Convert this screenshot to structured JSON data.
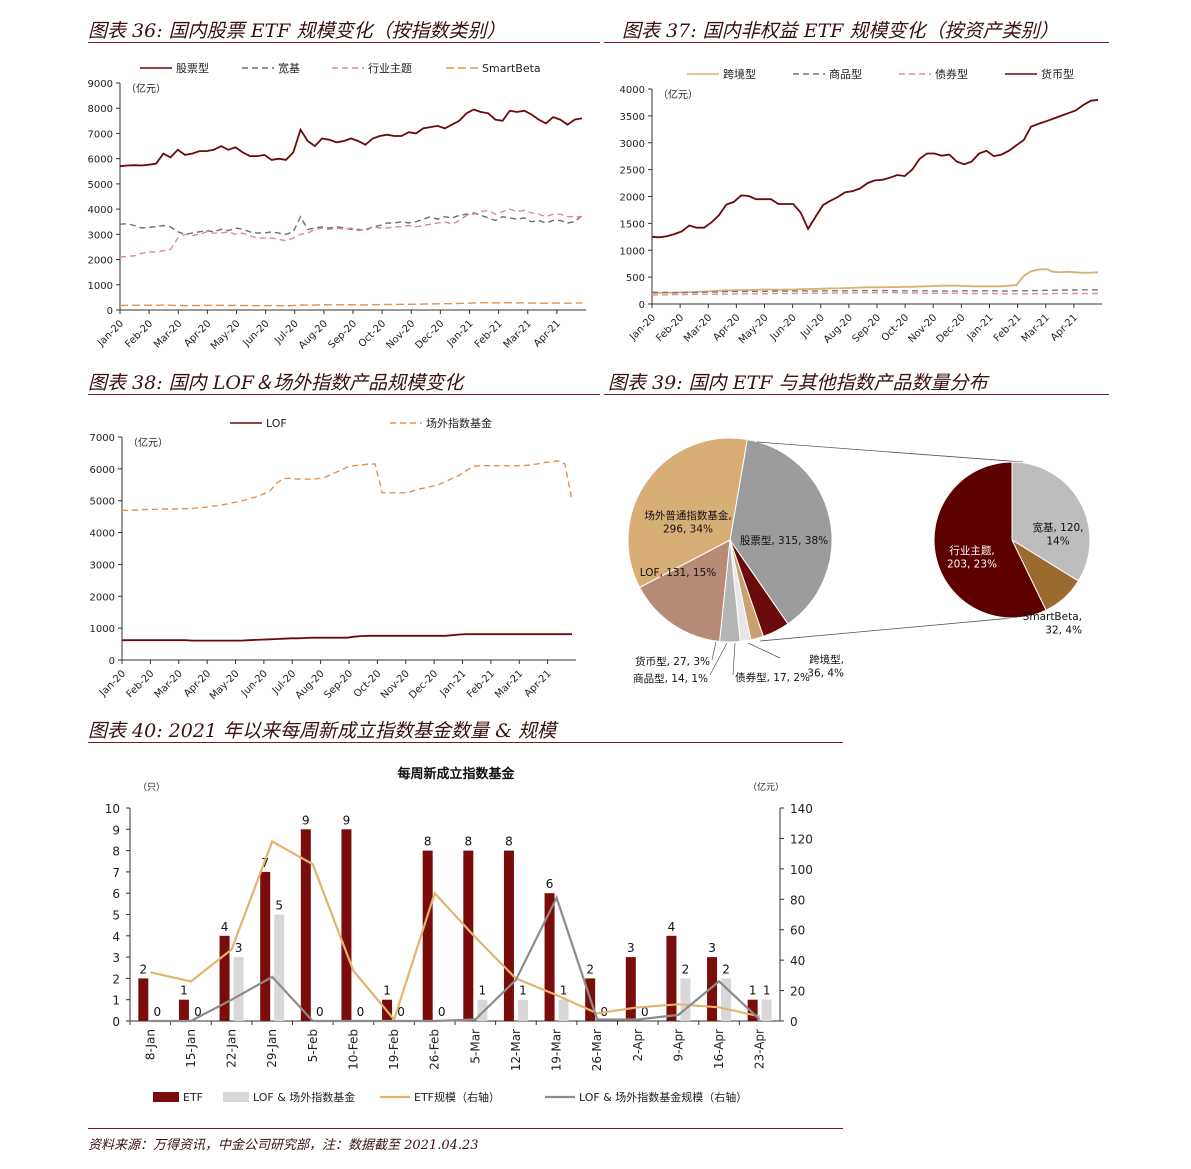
{
  "panels": {
    "p36": {
      "title": "图表 36:  国内股票 ETF 规模变化（按指数类别）"
    },
    "p37": {
      "title": "图表 37:  国内非权益 ETF 规模变化（按资产类别）"
    },
    "p38": {
      "title": "图表 38:  国内 LOF＆场外指数产品规模变化"
    },
    "p39": {
      "title": "图表 39:  国内 ETF 与其他指数产品数量分布"
    },
    "p40": {
      "title": "图表 40:  2021 年以来每周新成立指数基金数量  &  规模"
    }
  },
  "footer": "资料来源：万得资讯，中金公司研究部，注：数据截至 2021.04.23",
  "chart_data": [
    {
      "id": "c36",
      "type": "line",
      "unit_label": "（亿元）",
      "xlabel": "",
      "ylabel": "",
      "ylim": [
        0,
        9000
      ],
      "yticks": [
        0,
        1000,
        2000,
        3000,
        4000,
        5000,
        6000,
        7000,
        8000,
        9000
      ],
      "x_tick_labels": [
        "Jan-20",
        "Feb-20",
        "Mar-20",
        "Apr-20",
        "May-20",
        "Jun-20",
        "Jul-20",
        "Aug-20",
        "Sep-20",
        "Oct-20",
        "Nov-20",
        "Dec-20",
        "Jan-21",
        "Feb-21",
        "Mar-21",
        "Apr-21"
      ],
      "legend_position": "top",
      "series": [
        {
          "name": "股票型",
          "color": "#6b0a0a",
          "dash": "",
          "values": [
            5700,
            5730,
            5740,
            5730,
            5760,
            5800,
            6200,
            6050,
            6350,
            6150,
            6200,
            6300,
            6300,
            6350,
            6500,
            6350,
            6450,
            6250,
            6100,
            6100,
            6150,
            5950,
            6000,
            5950,
            6250,
            7150,
            6700,
            6500,
            6800,
            6750,
            6650,
            6700,
            6800,
            6700,
            6550,
            6800,
            6900,
            6950,
            6900,
            6900,
            7050,
            7000,
            7200,
            7250,
            7300,
            7200,
            7350,
            7500,
            7800,
            7950,
            7850,
            7800,
            7550,
            7500,
            7900,
            7850,
            7900,
            7750,
            7550,
            7400,
            7650,
            7550,
            7350,
            7550,
            7600
          ]
        },
        {
          "name": "宽基",
          "color": "#6e6e6e",
          "dash": "6,4",
          "values": [
            3400,
            3420,
            3350,
            3250,
            3280,
            3300,
            3350,
            3300,
            3100,
            3000,
            3050,
            3100,
            3150,
            3100,
            3200,
            3150,
            3250,
            3200,
            3100,
            3050,
            3050,
            3100,
            3050,
            3000,
            3100,
            3700,
            3200,
            3250,
            3300,
            3250,
            3300,
            3250,
            3200,
            3200,
            3150,
            3300,
            3350,
            3450,
            3450,
            3500,
            3450,
            3500,
            3600,
            3700,
            3600,
            3700,
            3650,
            3750,
            3800,
            3850,
            3750,
            3650,
            3550,
            3700,
            3650,
            3600,
            3650,
            3500,
            3550,
            3450,
            3550,
            3550,
            3450,
            3500,
            3750
          ]
        },
        {
          "name": "行业主题",
          "color": "#e08a8a",
          "dash": "6,4",
          "values": [
            2100,
            2120,
            2150,
            2250,
            2300,
            2300,
            2350,
            2400,
            2850,
            3000,
            2950,
            3000,
            3100,
            3050,
            3050,
            3100,
            3000,
            3050,
            2950,
            2850,
            2850,
            2850,
            2800,
            2750,
            2850,
            3000,
            3050,
            3200,
            3250,
            3200,
            3250,
            3200,
            3250,
            3150,
            3200,
            3300,
            3250,
            3250,
            3300,
            3300,
            3350,
            3300,
            3350,
            3400,
            3450,
            3500,
            3400,
            3550,
            3750,
            3800,
            3900,
            3950,
            3800,
            3900,
            4000,
            3900,
            3950,
            3850,
            3800,
            3700,
            3800,
            3800,
            3700,
            3700,
            3700
          ]
        },
        {
          "name": "SmartBeta",
          "color": "#e8904a",
          "dash": "8,4",
          "values": [
            180,
            185,
            185,
            190,
            185,
            190,
            195,
            190,
            180,
            170,
            175,
            180,
            185,
            180,
            185,
            180,
            185,
            180,
            175,
            170,
            170,
            175,
            170,
            165,
            175,
            200,
            195,
            200,
            210,
            205,
            210,
            205,
            210,
            205,
            200,
            210,
            215,
            220,
            220,
            225,
            225,
            230,
            235,
            240,
            245,
            250,
            250,
            260,
            270,
            280,
            285,
            290,
            280,
            285,
            290,
            280,
            285,
            275,
            270,
            265,
            275,
            275,
            270,
            270,
            280
          ]
        }
      ]
    },
    {
      "id": "c37",
      "type": "line",
      "unit_label": "（亿元）",
      "xlabel": "",
      "ylabel": "",
      "ylim": [
        0,
        4000
      ],
      "yticks": [
        0,
        500,
        1000,
        1500,
        2000,
        2500,
        3000,
        3500,
        4000
      ],
      "x_tick_labels": [
        "Jan-20",
        "Feb-20",
        "Mar-20",
        "Apr-20",
        "May-20",
        "Jun-20",
        "Jul-20",
        "Aug-20",
        "Sep-20",
        "Oct-20",
        "Nov-20",
        "Dec-20",
        "Jan-21",
        "Feb-21",
        "Mar-21",
        "Apr-21"
      ],
      "legend_position": "top",
      "series": [
        {
          "name": "跨境型",
          "color": "#d8b070",
          "dash": "",
          "values": [
            200,
            205,
            210,
            210,
            215,
            220,
            225,
            230,
            240,
            250,
            255,
            255,
            260,
            260,
            265,
            270,
            270,
            265,
            270,
            270,
            275,
            275,
            280,
            285,
            290,
            290,
            295,
            300,
            305,
            310,
            310,
            310,
            315,
            315,
            320,
            320,
            325,
            330,
            335,
            340,
            340,
            340,
            335,
            330,
            330,
            330,
            330,
            330,
            340,
            350,
            520,
            610,
            640,
            650,
            600,
            590,
            600,
            590,
            580,
            585,
            590
          ]
        },
        {
          "name": "商品型",
          "color": "#777777",
          "dash": "6,4",
          "values": [
            220,
            215,
            215,
            210,
            210,
            215,
            215,
            220,
            225,
            225,
            230,
            230,
            230,
            235,
            235,
            235,
            240,
            240,
            240,
            240,
            245,
            240,
            240,
            245,
            250,
            245,
            245,
            250,
            250,
            250,
            250,
            250,
            250,
            245,
            245,
            245,
            245,
            245,
            240,
            240,
            240,
            240,
            245,
            245,
            245,
            245,
            245,
            240,
            240,
            245,
            245,
            250,
            250,
            255,
            255,
            260,
            260,
            260,
            265,
            265,
            265
          ]
        },
        {
          "name": "债券型",
          "color": "#e09090",
          "dash": "6,4",
          "values": [
            170,
            170,
            170,
            175,
            175,
            175,
            180,
            180,
            180,
            185,
            185,
            185,
            190,
            190,
            190,
            190,
            195,
            195,
            195,
            195,
            200,
            200,
            200,
            200,
            205,
            205,
            205,
            205,
            210,
            210,
            210,
            210,
            210,
            210,
            205,
            205,
            205,
            200,
            200,
            200,
            200,
            200,
            195,
            195,
            195,
            195,
            195,
            190,
            190,
            190,
            190,
            190,
            190,
            190,
            195,
            195,
            195,
            195,
            195,
            195,
            195
          ]
        },
        {
          "name": "货币型",
          "color": "#6b0a0a",
          "dash": "",
          "values": [
            1250,
            1240,
            1260,
            1300,
            1350,
            1460,
            1420,
            1420,
            1520,
            1650,
            1850,
            1900,
            2020,
            2010,
            1950,
            1950,
            1950,
            1860,
            1860,
            1860,
            1700,
            1400,
            1620,
            1840,
            1920,
            1990,
            2080,
            2100,
            2150,
            2250,
            2300,
            2310,
            2350,
            2400,
            2380,
            2500,
            2700,
            2800,
            2800,
            2760,
            2780,
            2650,
            2600,
            2650,
            2800,
            2850,
            2750,
            2780,
            2850,
            2950,
            3050,
            3300,
            3350,
            3400,
            3450,
            3500,
            3550,
            3600,
            3700,
            3780,
            3800
          ]
        }
      ]
    },
    {
      "id": "c38",
      "type": "line",
      "unit_label": "（亿元）",
      "xlabel": "",
      "ylabel": "",
      "ylim": [
        0,
        7000
      ],
      "yticks": [
        0,
        1000,
        2000,
        3000,
        4000,
        5000,
        6000,
        7000
      ],
      "x_tick_labels": [
        "Jan-20",
        "Feb-20",
        "Mar-20",
        "Apr-20",
        "May-20",
        "Jun-20",
        "Jul-20",
        "Aug-20",
        "Sep-20",
        "Oct-20",
        "Nov-20",
        "Dec-20",
        "Jan-21",
        "Feb-21",
        "Mar-21",
        "Apr-21"
      ],
      "legend_position": "top",
      "series": [
        {
          "name": "LOF",
          "color": "#6b0a0a",
          "dash": "",
          "values": [
            620,
            620,
            620,
            620,
            620,
            620,
            620,
            620,
            620,
            620,
            610,
            610,
            610,
            610,
            610,
            610,
            610,
            610,
            620,
            630,
            640,
            650,
            660,
            670,
            680,
            680,
            690,
            700,
            700,
            700,
            700,
            700,
            700,
            730,
            750,
            760,
            760,
            760,
            760,
            760,
            760,
            760,
            760,
            760,
            760,
            760,
            760,
            780,
            800,
            810,
            810,
            810,
            810,
            810,
            810,
            810,
            810,
            810,
            810,
            810,
            810,
            810,
            810,
            810,
            810
          ]
        },
        {
          "name": "场外指数基金",
          "color": "#e8904a",
          "dash": "6,4",
          "values": [
            4700,
            4700,
            4710,
            4720,
            4730,
            4730,
            4740,
            4740,
            4740,
            4750,
            4760,
            4780,
            4800,
            4830,
            4860,
            4900,
            4950,
            4990,
            5050,
            5120,
            5200,
            5300,
            5550,
            5700,
            5700,
            5680,
            5680,
            5670,
            5700,
            5750,
            5850,
            5950,
            6050,
            6100,
            6120,
            6150,
            6150,
            5250,
            5250,
            5250,
            5250,
            5280,
            5350,
            5400,
            5450,
            5500,
            5600,
            5700,
            5800,
            5950,
            6080,
            6100,
            6100,
            6100,
            6100,
            6100,
            6100,
            6100,
            6120,
            6150,
            6200,
            6220,
            6250,
            6150,
            5000
          ]
        }
      ]
    },
    {
      "id": "c39",
      "type": "pie",
      "main_slices": [
        {
          "label": "股票型",
          "value": 315,
          "pct": "38%",
          "color": "#9c9c9c"
        },
        {
          "label": "跨境型",
          "value": 36,
          "pct": "4%",
          "color": "#6b0a0a"
        },
        {
          "label": "债券型",
          "value": 17,
          "pct": "2%",
          "color": "#c9a070"
        },
        {
          "label": "商品型",
          "value": 14,
          "pct": "1%",
          "color": "#e7e7e7"
        },
        {
          "label": "货币型",
          "value": 27,
          "pct": "3%",
          "color": "#b5b5b5"
        },
        {
          "label": "LOF",
          "value": 131,
          "pct": "15%",
          "color": "#b88a78"
        },
        {
          "label": "场外普通指数基金",
          "value": 296,
          "pct": "34%",
          "color": "#d7ae76"
        }
      ],
      "sub_slices": [
        {
          "label": "宽基",
          "value": 120,
          "pct": "14%",
          "color": "#bdbdbd"
        },
        {
          "label": "SmartBeta",
          "value": 32,
          "pct": "4%",
          "color": "#9a6a2e"
        },
        {
          "label": "行业主题",
          "value": 203,
          "pct": "23%",
          "color": "#5c0000"
        }
      ]
    },
    {
      "id": "c40",
      "type": "bar",
      "title": "每周新成立指数基金",
      "left_unit": "（只）",
      "right_unit": "（亿元）",
      "ylim": [
        0,
        10
      ],
      "y2lim": [
        0,
        140
      ],
      "yticks": [
        0,
        1,
        2,
        3,
        4,
        5,
        6,
        7,
        8,
        9,
        10
      ],
      "y2ticks": [
        0,
        20,
        40,
        60,
        80,
        100,
        120,
        140
      ],
      "categories": [
        "8-Jan",
        "15-Jan",
        "22-Jan",
        "29-Jan",
        "5-Feb",
        "10-Feb",
        "19-Feb",
        "26-Feb",
        "5-Mar",
        "12-Mar",
        "19-Mar",
        "26-Mar",
        "2-Apr",
        "9-Apr",
        "16-Apr",
        "23-Apr"
      ],
      "series": [
        {
          "name": "ETF",
          "kind": "bar",
          "axis": "left",
          "color": "#7a0c0c",
          "values": [
            2,
            1,
            4,
            7,
            9,
            9,
            1,
            8,
            8,
            8,
            6,
            2,
            3,
            4,
            3,
            1
          ]
        },
        {
          "name": "LOF & 场外指数基金",
          "kind": "bar",
          "axis": "left",
          "color": "#d8d8d8",
          "values": [
            0,
            0,
            3,
            5,
            0,
            0,
            0,
            0,
            1,
            1,
            1,
            0,
            0,
            2,
            2,
            1
          ]
        },
        {
          "name": "ETF规模（右轴）",
          "kind": "line",
          "axis": "right",
          "color": "#e3b46e",
          "values": [
            32,
            26,
            47,
            118,
            103,
            33,
            1,
            84,
            55,
            28,
            17,
            5,
            9,
            11,
            9,
            3
          ]
        },
        {
          "name": "LOF & 场外指数基金规模（右轴）",
          "kind": "line",
          "axis": "right",
          "color": "#8c8c8c",
          "values": [
            0,
            0,
            14,
            29,
            0,
            0,
            0,
            0,
            1,
            27,
            81,
            1,
            1,
            4,
            26,
            1
          ]
        }
      ]
    }
  ]
}
